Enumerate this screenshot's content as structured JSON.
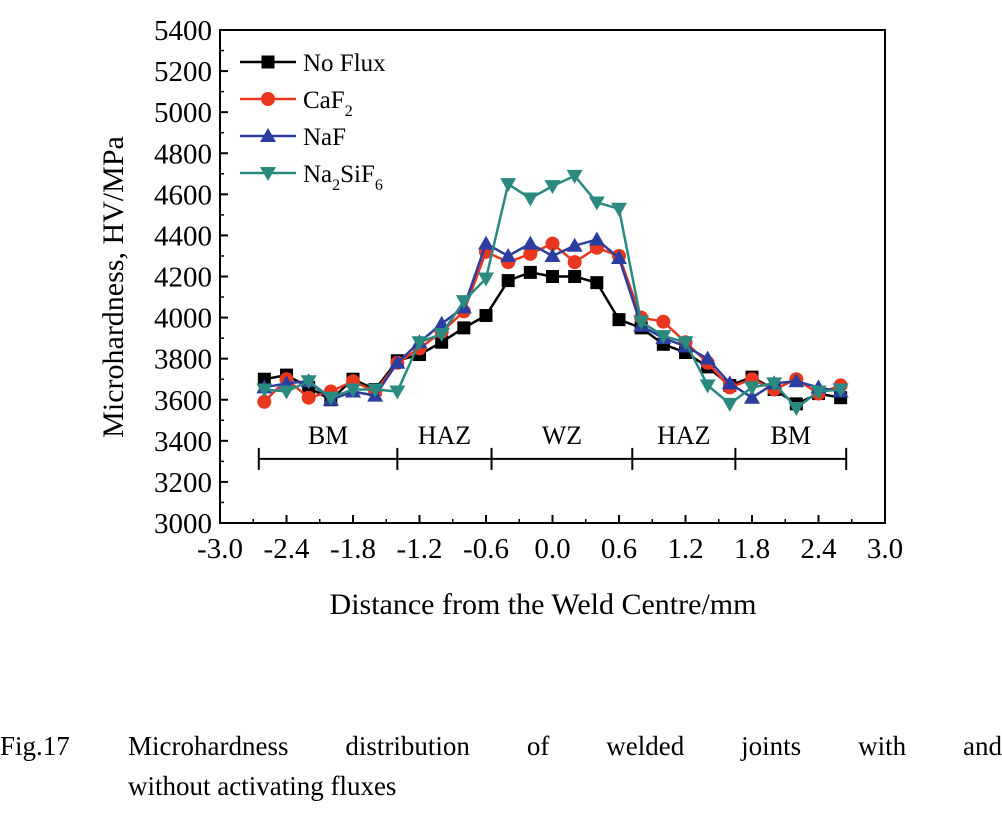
{
  "chart_data": {
    "type": "line",
    "xlabel": "Distance from the Weld Centre/mm",
    "ylabel": "Microhardness, HV/MPa",
    "xlim": [
      -3.0,
      3.0
    ],
    "ylim": [
      3000,
      5400
    ],
    "xticks": [
      "-3.0",
      "-2.4",
      "-1.8",
      "-1.2",
      "-0.6",
      "0.0",
      "0.6",
      "1.2",
      "1.8",
      "2.4",
      "3.0"
    ],
    "xtick_values": [
      -3.0,
      -2.4,
      -1.8,
      -1.2,
      -0.6,
      0.0,
      0.6,
      1.2,
      1.8,
      2.4,
      3.0
    ],
    "yticks": [
      "3000",
      "3200",
      "3400",
      "3600",
      "3800",
      "4000",
      "4200",
      "4400",
      "4600",
      "4800",
      "5000",
      "5200",
      "5400"
    ],
    "ytick_values": [
      3000,
      3200,
      3400,
      3600,
      3800,
      4000,
      4200,
      4400,
      4600,
      4800,
      5000,
      5200,
      5400
    ],
    "legend_position": "top-left",
    "regions": {
      "y": 3390,
      "boundaries": [
        -2.65,
        -1.4,
        -0.55,
        0.72,
        1.65,
        2.65
      ],
      "labels": [
        "BM",
        "HAZ",
        "WZ",
        "HAZ",
        "BM"
      ]
    },
    "series": [
      {
        "name": "No Flux",
        "color": "#000000",
        "marker": "square",
        "x": [
          -2.6,
          -2.4,
          -2.2,
          -2.0,
          -1.8,
          -1.6,
          -1.4,
          -1.2,
          -1.0,
          -0.8,
          -0.6,
          -0.4,
          -0.2,
          0.0,
          0.2,
          0.4,
          0.6,
          0.8,
          1.0,
          1.2,
          1.4,
          1.6,
          1.8,
          2.0,
          2.2,
          2.4,
          2.6
        ],
        "y": [
          3700,
          3720,
          3660,
          3600,
          3700,
          3650,
          3790,
          3820,
          3880,
          3950,
          4010,
          4180,
          4220,
          4200,
          4200,
          4170,
          3990,
          3950,
          3870,
          3830,
          3760,
          3670,
          3710,
          3650,
          3580,
          3630,
          3610
        ]
      },
      {
        "name": "CaF2",
        "color": "#e8361f",
        "marker": "circle",
        "x": [
          -2.6,
          -2.4,
          -2.2,
          -2.0,
          -1.8,
          -1.6,
          -1.4,
          -1.2,
          -1.0,
          -0.8,
          -0.6,
          -0.4,
          -0.2,
          0.0,
          0.2,
          0.4,
          0.6,
          0.8,
          1.0,
          1.2,
          1.4,
          1.6,
          1.8,
          2.0,
          2.2,
          2.4,
          2.6
        ],
        "y": [
          3590,
          3700,
          3610,
          3640,
          3690,
          3640,
          3780,
          3850,
          3930,
          4030,
          4320,
          4270,
          4310,
          4360,
          4270,
          4340,
          4300,
          4000,
          3980,
          3880,
          3780,
          3660,
          3700,
          3650,
          3700,
          3630,
          3670
        ]
      },
      {
        "name": "NaF",
        "color": "#2b3ea0",
        "marker": "triangle-up",
        "x": [
          -2.6,
          -2.4,
          -2.2,
          -2.0,
          -1.8,
          -1.6,
          -1.4,
          -1.2,
          -1.0,
          -0.8,
          -0.6,
          -0.4,
          -0.2,
          0.0,
          0.2,
          0.4,
          0.6,
          0.8,
          1.0,
          1.2,
          1.4,
          1.6,
          1.8,
          2.0,
          2.2,
          2.4,
          2.6
        ],
        "y": [
          3660,
          3680,
          3690,
          3600,
          3640,
          3620,
          3780,
          3880,
          3970,
          4050,
          4360,
          4300,
          4360,
          4300,
          4350,
          4380,
          4290,
          3960,
          3900,
          3860,
          3800,
          3680,
          3610,
          3680,
          3690,
          3660,
          3640
        ]
      },
      {
        "name": "Na2SiF6",
        "color": "#2a8a80",
        "marker": "triangle-down",
        "x": [
          -2.6,
          -2.4,
          -2.2,
          -2.0,
          -1.8,
          -1.6,
          -1.4,
          -1.2,
          -1.0,
          -0.8,
          -0.6,
          -0.4,
          -0.2,
          0.0,
          0.2,
          0.4,
          0.6,
          0.8,
          1.0,
          1.2,
          1.4,
          1.6,
          1.8,
          2.0,
          2.2,
          2.4,
          2.6
        ],
        "y": [
          3650,
          3640,
          3690,
          3610,
          3650,
          3650,
          3640,
          3880,
          3920,
          4080,
          4190,
          4650,
          4580,
          4640,
          4690,
          4560,
          4530,
          3980,
          3910,
          3880,
          3670,
          3580,
          3660,
          3680,
          3560,
          3640,
          3650
        ]
      }
    ]
  },
  "legend": {
    "items": [
      {
        "label": "No Flux"
      },
      {
        "label": "CaF",
        "sub": "2"
      },
      {
        "label": "NaF"
      },
      {
        "label": "Na",
        "sub": "2",
        "label2": "SiF",
        "sub2": "6"
      }
    ]
  },
  "caption": {
    "number": "Fig.17",
    "line1": "Microhardness distribution of welded joints with and",
    "line2": "without activating fluxes"
  }
}
